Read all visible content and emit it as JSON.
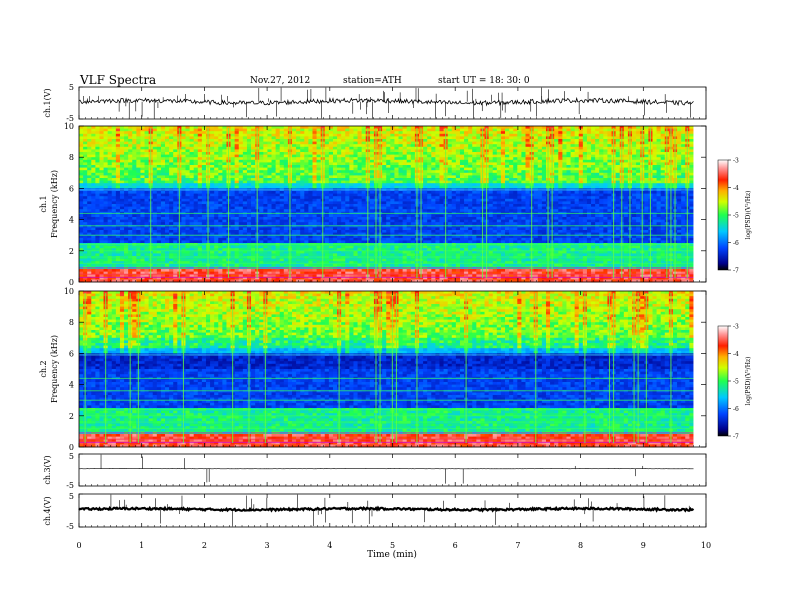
{
  "header": {
    "title": "VLF  Spectra",
    "date": "Nov.27, 2012",
    "station": "station=ATH",
    "start": "start  UT  =    18: 30: 0"
  },
  "chart_data": [
    {
      "type": "line",
      "panel": "ch1-waveform",
      "ylabel": "ch.1(V)",
      "yticks": [
        "5",
        "-5"
      ],
      "ylim": [
        -5,
        5
      ],
      "note": "noisy trace near 0 V with frequent spikes"
    },
    {
      "type": "heatmap",
      "panel": "ch1-spectrogram",
      "ylabel_top": "ch.1",
      "ylabel": "Frequency  (kHz)",
      "ylim": [
        0,
        10
      ],
      "yticks": [
        "0",
        "2",
        "4",
        "6",
        "8",
        "10"
      ],
      "colorbar": {
        "label": "log(PSD)(V²/Hz)",
        "ticks": [
          "-3",
          "-4",
          "-5",
          "-6",
          "-7"
        ],
        "range": [
          -7,
          -3
        ]
      }
    },
    {
      "type": "heatmap",
      "panel": "ch2-spectrogram",
      "ylabel_top": "ch.2",
      "ylabel": "Frequency  (kHz)",
      "ylim": [
        0,
        10
      ],
      "yticks": [
        "0",
        "2",
        "4",
        "6",
        "8",
        "10"
      ],
      "colorbar": {
        "label": "log(PSD)(V²/Hz)",
        "ticks": [
          "-3",
          "-4",
          "-5",
          "-6",
          "-7"
        ],
        "range": [
          -7,
          -3
        ]
      }
    },
    {
      "type": "line",
      "panel": "ch3-waveform",
      "ylabel": "ch.3(V)",
      "yticks": [
        "5",
        "-5"
      ],
      "ylim": [
        -5,
        5
      ]
    },
    {
      "type": "line",
      "panel": "ch4-waveform",
      "ylabel": "ch.4(V)",
      "yticks": [
        "5",
        "-5"
      ],
      "ylim": [
        -5,
        5
      ]
    }
  ],
  "xaxis": {
    "label": "Time  (min)",
    "ticks": [
      "0",
      "1",
      "2",
      "3",
      "4",
      "5",
      "6",
      "7",
      "8",
      "9",
      "10"
    ],
    "xlim": [
      0,
      10
    ],
    "data_end": 9.8
  }
}
